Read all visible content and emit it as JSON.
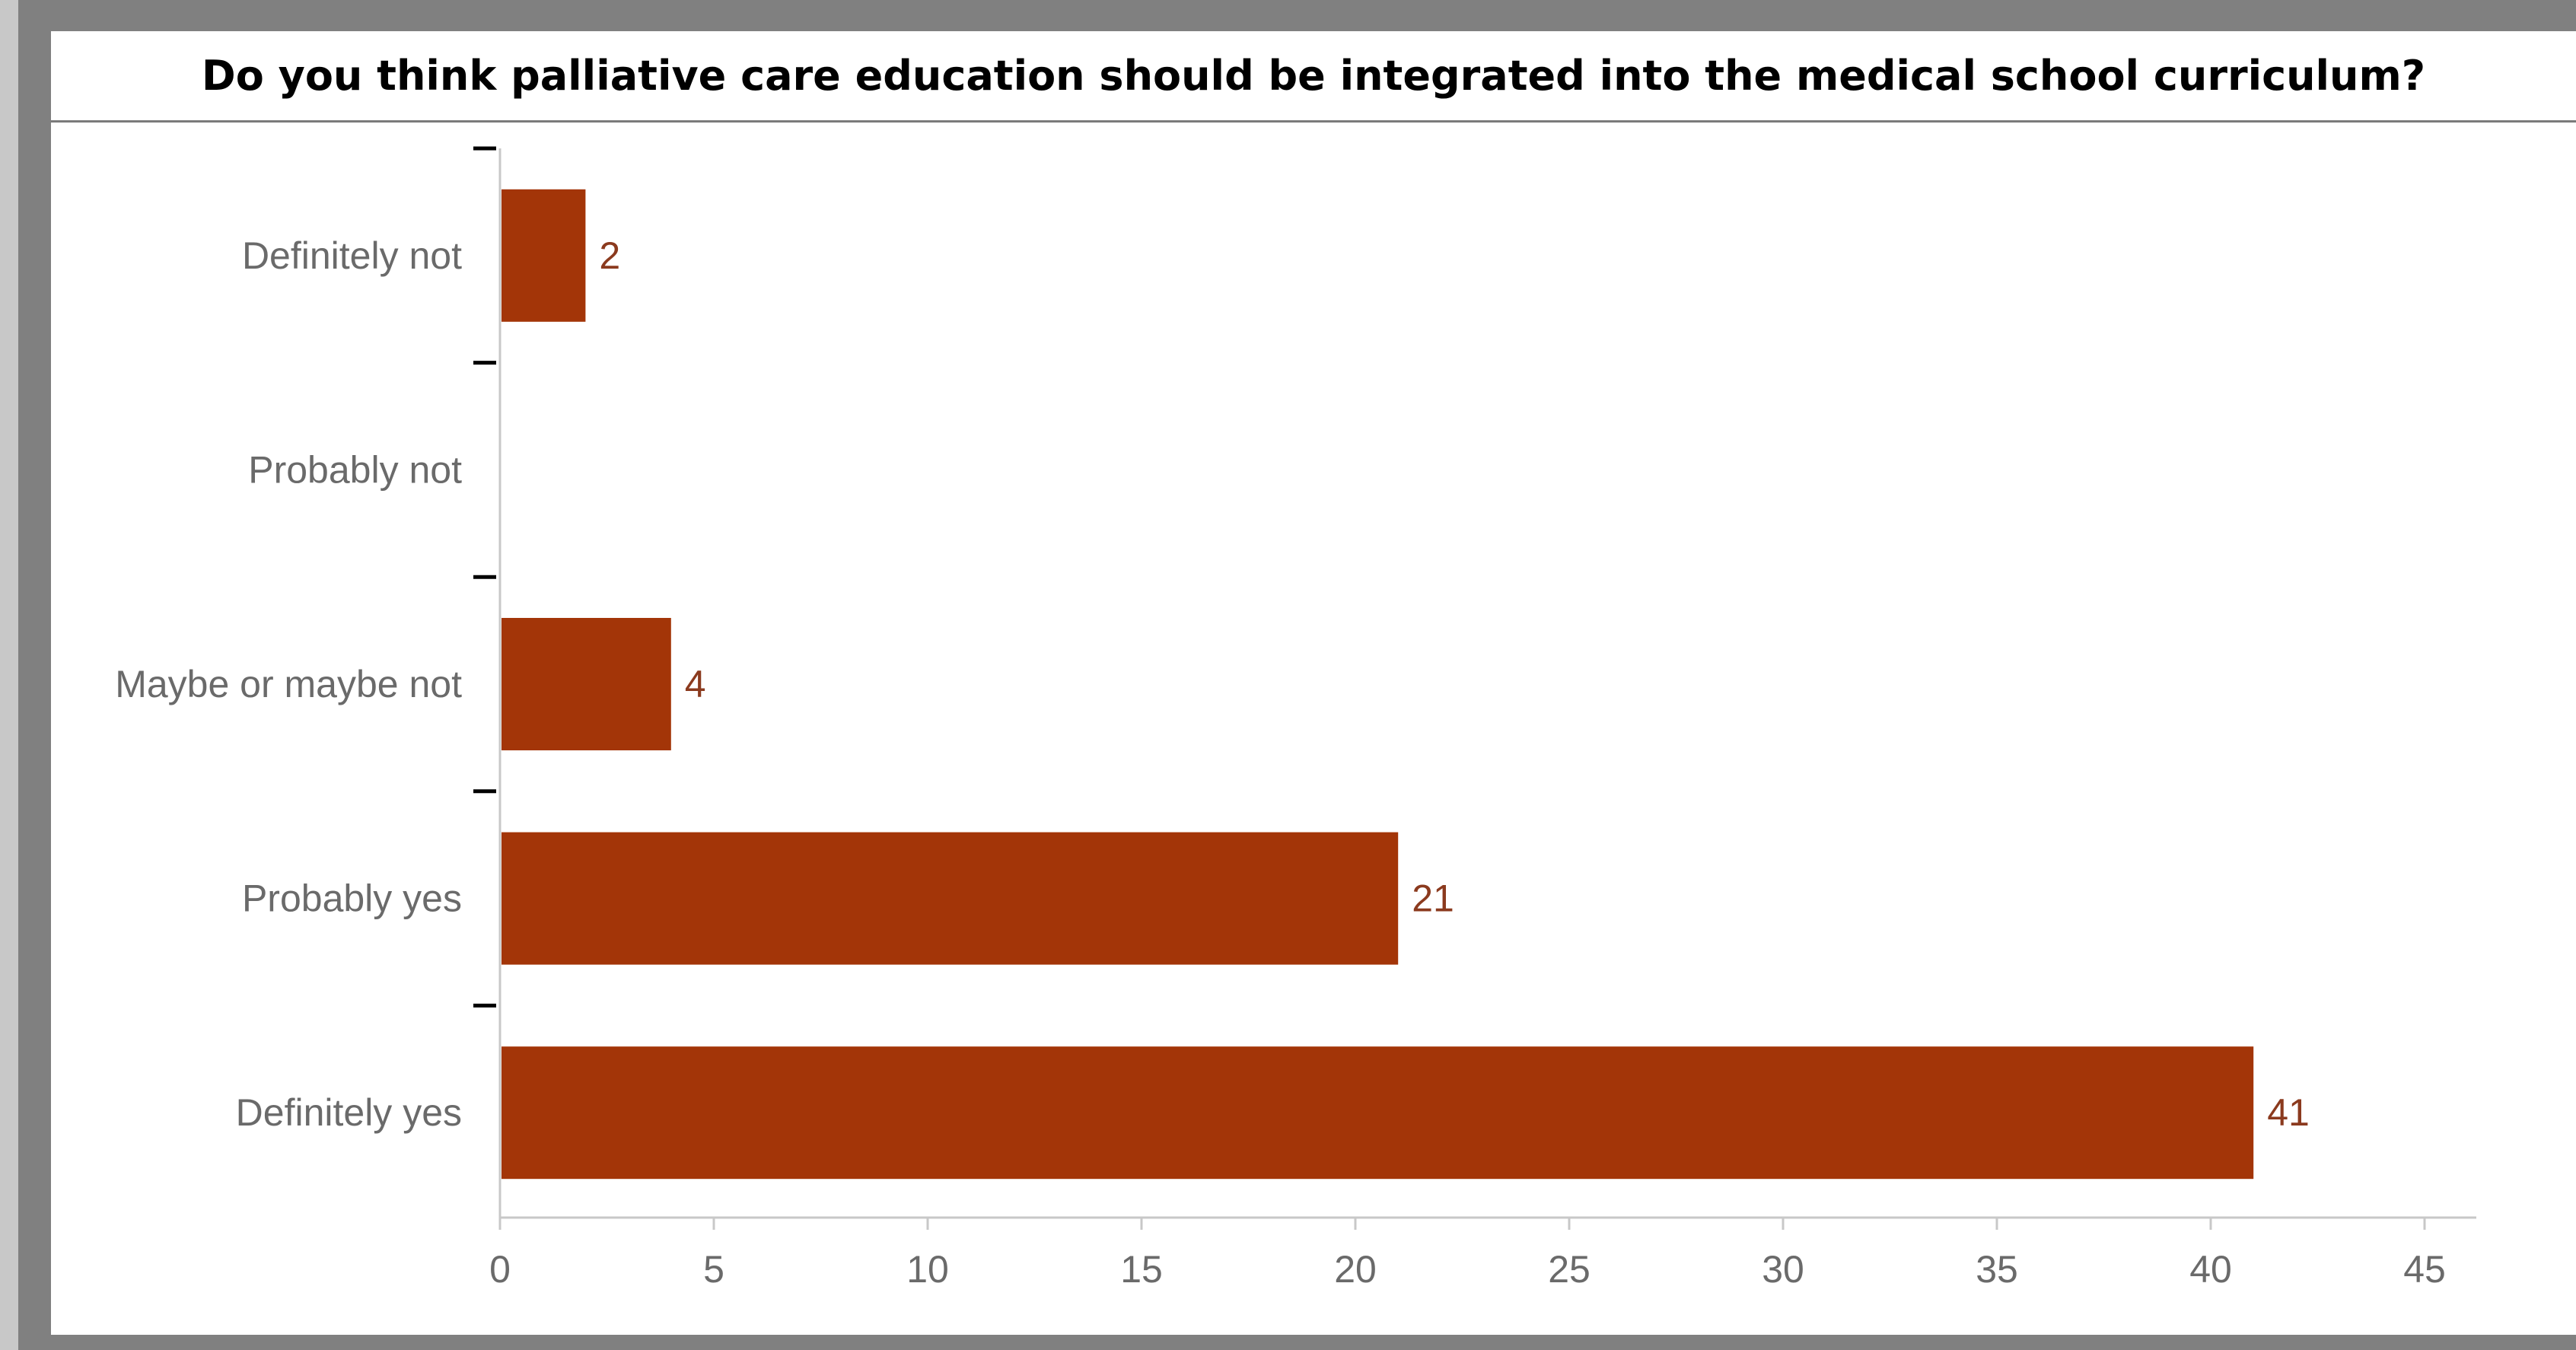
{
  "chart_data": {
    "type": "bar",
    "orientation": "horizontal",
    "title": "Do you think palliative care education should be integrated into the medical school curriculum?",
    "categories": [
      "Definitely not",
      "Probably not",
      "Maybe or maybe not",
      "Probably yes",
      "Definitely yes"
    ],
    "values": [
      2,
      0,
      4,
      21,
      41
    ],
    "data_labels": [
      "2",
      "",
      "4",
      "21",
      "41"
    ],
    "xlim": [
      0,
      45
    ],
    "xticks": [
      0,
      5,
      10,
      15,
      20,
      25,
      30,
      35,
      40,
      45
    ],
    "xlabel": "",
    "ylabel": "",
    "grid": false,
    "legend": "none"
  },
  "colors": {
    "bar": "#a33508",
    "data_label": "#8b3a1e",
    "axis": "#c8c8c8",
    "tick_mark": "#000000",
    "label_text": "#6a6a6a"
  }
}
